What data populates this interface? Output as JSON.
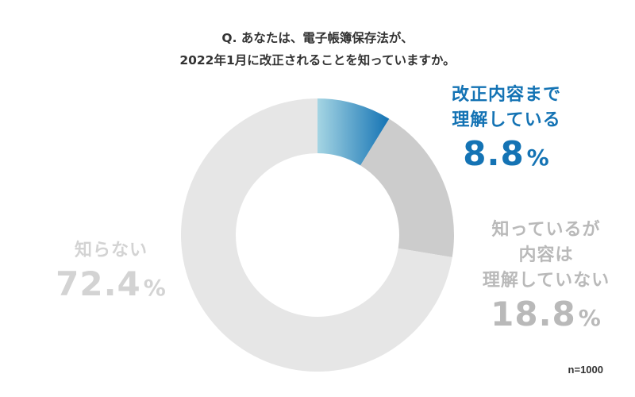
{
  "question": {
    "line1": "Q. あなたは、電子帳簿保存法が、",
    "line2": "2022年1月に改正されることを知っていますか。"
  },
  "chart_data": {
    "type": "pie",
    "variant": "donut",
    "unit": "%",
    "slices": [
      {
        "label_lines": [
          "改正内容まで",
          "理解している"
        ],
        "value": 8.8,
        "display": "8.8",
        "color": "#1473b4",
        "gradient_start": "#a5d5e3"
      },
      {
        "label_lines": [
          "知っているが",
          "内容は",
          "理解していない"
        ],
        "value": 18.8,
        "display": "18.8",
        "color": "#cccccc"
      },
      {
        "label_lines": [
          "知らない"
        ],
        "value": 72.4,
        "display": "72.4",
        "color": "#e6e6e6"
      }
    ]
  },
  "sample_note": "n=1000"
}
